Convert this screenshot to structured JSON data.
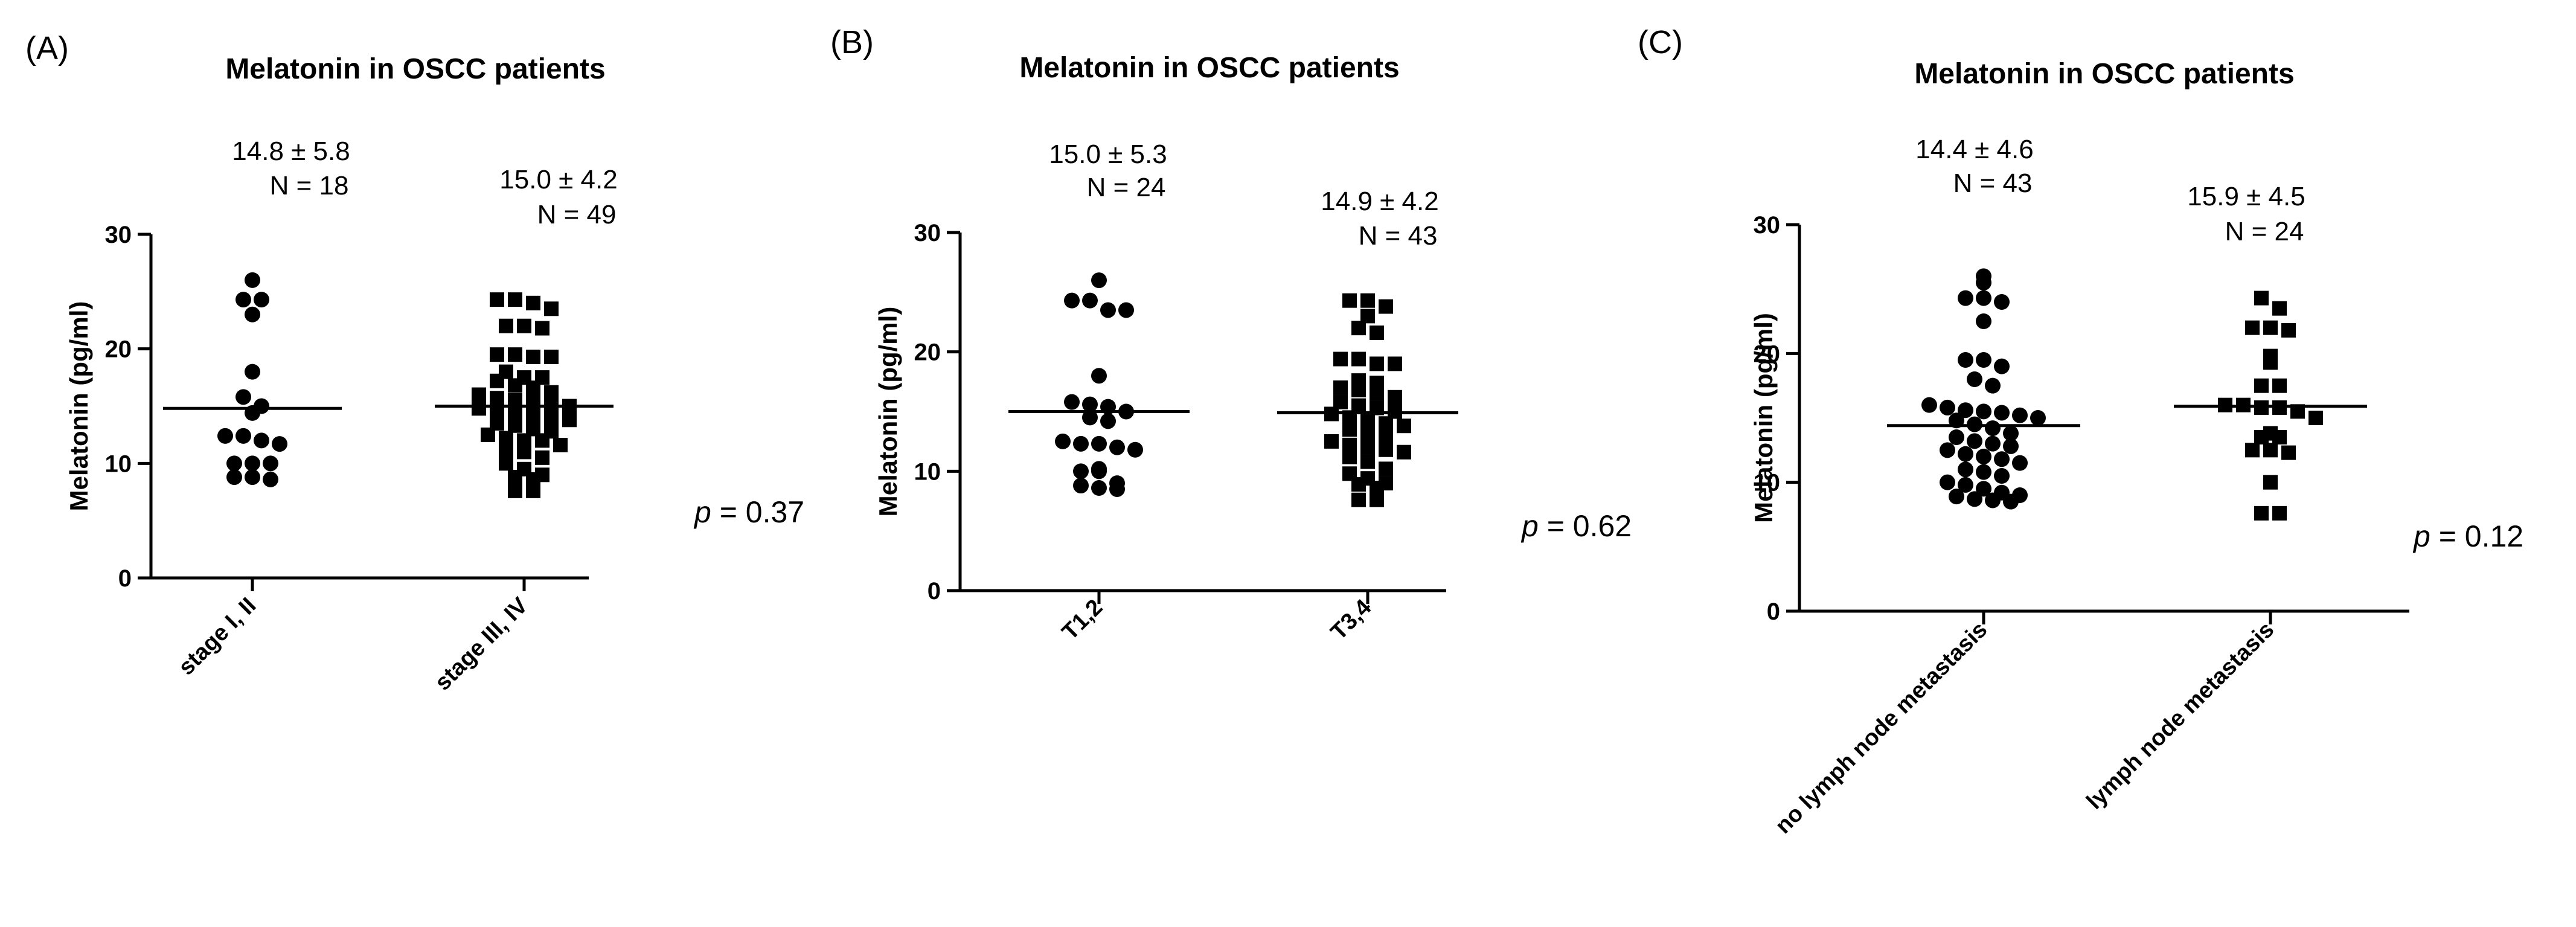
{
  "chart_data": [
    {
      "type": "scatter",
      "panel_label": "(A)",
      "title": "Melatonin in OSCC patients",
      "ylabel": "Melatonin (pg/ml)",
      "ylim": [
        0,
        30
      ],
      "yticks": [
        "0",
        "10",
        "20",
        "30"
      ],
      "p_prefix": "p",
      "p_text": "= 0.37",
      "groups": [
        {
          "name": "stage I, II",
          "marker": "circle",
          "mean_sd": "14.8 ± 5.8",
          "n_label": "N = 18",
          "mean": 14.8,
          "values": [
            26.0,
            24.3,
            24.3,
            23.0,
            18.0,
            15.8,
            15.0,
            14.4,
            12.4,
            12.4,
            12.0,
            11.7,
            10.0,
            10.0,
            10.0,
            8.8,
            8.8,
            8.6
          ]
        },
        {
          "name": "stage III, IV",
          "marker": "square",
          "mean_sd": "15.0 ± 4.2",
          "n_label": "N = 49",
          "mean": 15.0,
          "values": [
            24.3,
            24.3,
            24.0,
            23.5,
            22.0,
            22.0,
            21.8,
            19.5,
            19.5,
            19.3,
            19.3,
            18.0,
            17.5,
            17.5,
            17.2,
            16.8,
            16.6,
            16.2,
            16.0,
            15.7,
            15.5,
            15.4,
            15.2,
            15.0,
            14.8,
            14.6,
            14.4,
            14.2,
            14.0,
            13.8,
            13.5,
            13.3,
            13.0,
            12.8,
            12.5,
            12.2,
            12.0,
            12.0,
            11.6,
            11.2,
            11.0,
            10.5,
            10.0,
            9.5,
            9.0,
            8.8,
            8.6,
            7.6,
            7.6
          ]
        }
      ]
    },
    {
      "type": "scatter",
      "panel_label": "(B)",
      "title": "Melatonin in OSCC patients",
      "ylabel": "Melatonin (pg/ml)",
      "ylim": [
        0,
        30
      ],
      "yticks": [
        "0",
        "10",
        "20",
        "30"
      ],
      "p_prefix": "p",
      "p_text": "= 0.62",
      "groups": [
        {
          "name": "T1,2",
          "marker": "circle",
          "mean_sd": "15.0 ± 5.3",
          "n_label": "N = 24",
          "mean": 15.0,
          "values": [
            26.0,
            24.3,
            24.3,
            23.5,
            23.5,
            18.0,
            15.8,
            15.6,
            15.4,
            15.0,
            14.5,
            14.2,
            12.5,
            12.3,
            12.3,
            12.0,
            11.8,
            10.2,
            10.0,
            10.0,
            9.0,
            8.8,
            8.6,
            8.5
          ]
        },
        {
          "name": "T3,4",
          "marker": "square",
          "mean_sd": "14.9 ± 4.2",
          "n_label": "N = 43",
          "mean": 14.9,
          "values": [
            24.3,
            24.3,
            23.8,
            23.0,
            22.0,
            21.6,
            19.4,
            19.4,
            19.0,
            19.0,
            17.6,
            17.4,
            17.0,
            16.8,
            16.5,
            16.2,
            15.8,
            15.5,
            15.3,
            15.0,
            14.8,
            14.5,
            14.2,
            14.0,
            13.8,
            13.5,
            13.2,
            12.8,
            12.5,
            12.2,
            12.0,
            11.8,
            11.6,
            11.2,
            10.8,
            10.2,
            9.8,
            9.4,
            9.0,
            8.9,
            8.6,
            7.6,
            7.6
          ]
        }
      ]
    },
    {
      "type": "scatter",
      "panel_label": "(C)",
      "title": "Melatonin in OSCC patients",
      "ylabel": "Melatonin (pg/ml)",
      "ylim": [
        0,
        30
      ],
      "yticks": [
        "0",
        "10",
        "20",
        "30"
      ],
      "p_prefix": "p",
      "p_text": "= 0.12",
      "groups": [
        {
          "name": "no lymph node metastasis",
          "marker": "circle",
          "mean_sd": "14.4 ± 4.6",
          "n_label": "N = 43",
          "mean": 14.4,
          "values": [
            26.0,
            25.5,
            24.3,
            24.3,
            24.0,
            22.5,
            19.5,
            19.5,
            19.0,
            18.0,
            17.5,
            16.0,
            15.8,
            15.6,
            15.5,
            15.4,
            15.2,
            15.0,
            14.8,
            14.5,
            14.2,
            13.8,
            13.5,
            13.2,
            13.0,
            12.8,
            12.5,
            12.2,
            12.0,
            11.8,
            11.5,
            11.0,
            10.8,
            10.5,
            10.0,
            9.8,
            9.5,
            9.2,
            9.0,
            8.9,
            8.7,
            8.6,
            8.5
          ]
        },
        {
          "name": "lymph node metastasis",
          "marker": "square",
          "mean_sd": "15.9 ± 4.5",
          "n_label": "N = 24",
          "mean": 15.9,
          "values": [
            24.3,
            23.5,
            22.0,
            22.0,
            21.8,
            19.8,
            19.3,
            17.5,
            17.5,
            16.0,
            16.0,
            15.8,
            15.8,
            15.5,
            15.0,
            13.8,
            13.5,
            13.5,
            12.5,
            12.5,
            12.3,
            10.0,
            7.6,
            7.6
          ]
        }
      ]
    }
  ]
}
